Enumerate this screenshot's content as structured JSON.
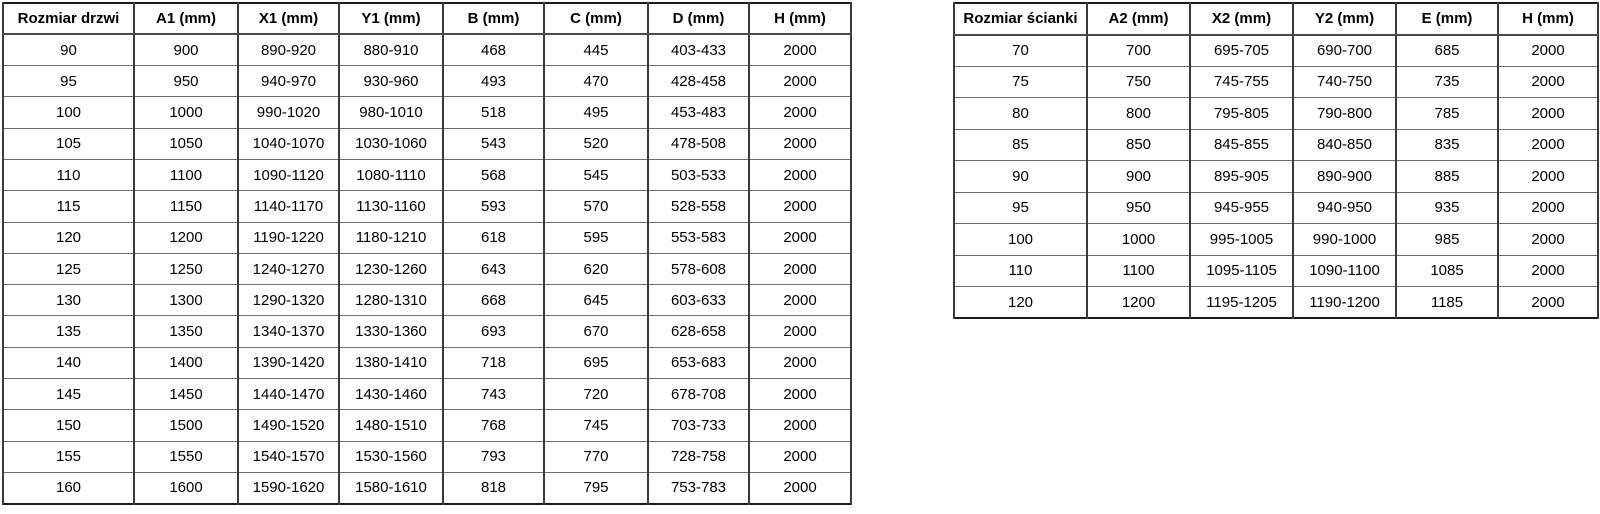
{
  "page": {
    "background": "#ffffff",
    "text_color": "#000000",
    "border_color": "#3b3b3b"
  },
  "tables": {
    "doors": {
      "headers": [
        "Rozmiar drzwi",
        "A1 (mm)",
        "X1 (mm)",
        "Y1 (mm)",
        "B (mm)",
        "C (mm)",
        "D (mm)",
        "H (mm)"
      ],
      "rows": [
        [
          "90",
          "900",
          "890-920",
          "880-910",
          "468",
          "445",
          "403-433",
          "2000"
        ],
        [
          "95",
          "950",
          "940-970",
          "930-960",
          "493",
          "470",
          "428-458",
          "2000"
        ],
        [
          "100",
          "1000",
          "990-1020",
          "980-1010",
          "518",
          "495",
          "453-483",
          "2000"
        ],
        [
          "105",
          "1050",
          "1040-1070",
          "1030-1060",
          "543",
          "520",
          "478-508",
          "2000"
        ],
        [
          "110",
          "1100",
          "1090-1120",
          "1080-1110",
          "568",
          "545",
          "503-533",
          "2000"
        ],
        [
          "115",
          "1150",
          "1140-1170",
          "1130-1160",
          "593",
          "570",
          "528-558",
          "2000"
        ],
        [
          "120",
          "1200",
          "1190-1220",
          "1180-1210",
          "618",
          "595",
          "553-583",
          "2000"
        ],
        [
          "125",
          "1250",
          "1240-1270",
          "1230-1260",
          "643",
          "620",
          "578-608",
          "2000"
        ],
        [
          "130",
          "1300",
          "1290-1320",
          "1280-1310",
          "668",
          "645",
          "603-633",
          "2000"
        ],
        [
          "135",
          "1350",
          "1340-1370",
          "1330-1360",
          "693",
          "670",
          "628-658",
          "2000"
        ],
        [
          "140",
          "1400",
          "1390-1420",
          "1380-1410",
          "718",
          "695",
          "653-683",
          "2000"
        ],
        [
          "145",
          "1450",
          "1440-1470",
          "1430-1460",
          "743",
          "720",
          "678-708",
          "2000"
        ],
        [
          "150",
          "1500",
          "1490-1520",
          "1480-1510",
          "768",
          "745",
          "703-733",
          "2000"
        ],
        [
          "155",
          "1550",
          "1540-1570",
          "1530-1560",
          "793",
          "770",
          "728-758",
          "2000"
        ],
        [
          "160",
          "1600",
          "1590-1620",
          "1580-1610",
          "818",
          "795",
          "753-783",
          "2000"
        ]
      ]
    },
    "walls": {
      "headers": [
        "Rozmiar ścianki",
        "A2 (mm)",
        "X2 (mm)",
        "Y2 (mm)",
        "E (mm)",
        "H (mm)"
      ],
      "rows": [
        [
          "70",
          "700",
          "695-705",
          "690-700",
          "685",
          "2000"
        ],
        [
          "75",
          "750",
          "745-755",
          "740-750",
          "735",
          "2000"
        ],
        [
          "80",
          "800",
          "795-805",
          "790-800",
          "785",
          "2000"
        ],
        [
          "85",
          "850",
          "845-855",
          "840-850",
          "835",
          "2000"
        ],
        [
          "90",
          "900",
          "895-905",
          "890-900",
          "885",
          "2000"
        ],
        [
          "95",
          "950",
          "945-955",
          "940-950",
          "935",
          "2000"
        ],
        [
          "100",
          "1000",
          "995-1005",
          "990-1000",
          "985",
          "2000"
        ],
        [
          "110",
          "1100",
          "1095-1105",
          "1090-1100",
          "1085",
          "2000"
        ],
        [
          "120",
          "1200",
          "1195-1205",
          "1190-1200",
          "1185",
          "2000"
        ]
      ]
    }
  }
}
